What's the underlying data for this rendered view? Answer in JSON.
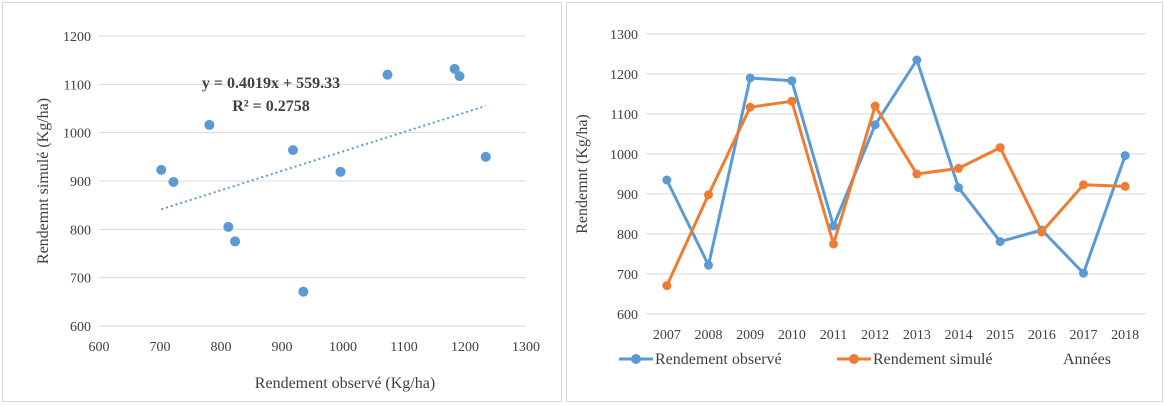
{
  "colors": {
    "blue": "#5b9bd5",
    "orange": "#ed7d31",
    "grid": "#d9d9d9",
    "text": "#404040"
  },
  "chart_data": [
    {
      "type": "scatter",
      "xlabel": "Rendement observé (Kg/ha)",
      "ylabel": "Rendemnt simulé (Kg/ha)",
      "xlim": [
        600,
        1300
      ],
      "ylim": [
        600,
        1200
      ],
      "xticks": [
        "600",
        "700",
        "800",
        "900",
        "1000",
        "1100",
        "1200",
        "1300"
      ],
      "yticks": [
        "600",
        "700",
        "800",
        "900",
        "1000",
        "1100",
        "1200"
      ],
      "grid": "horizontal",
      "points": [
        {
          "x": 702,
          "y": 923
        },
        {
          "x": 722,
          "y": 898
        },
        {
          "x": 781,
          "y": 1016
        },
        {
          "x": 812,
          "y": 805
        },
        {
          "x": 823,
          "y": 775
        },
        {
          "x": 918,
          "y": 964
        },
        {
          "x": 935,
          "y": 671
        },
        {
          "x": 996,
          "y": 919
        },
        {
          "x": 1073,
          "y": 1120
        },
        {
          "x": 1183,
          "y": 1132
        },
        {
          "x": 1191,
          "y": 1117
        },
        {
          "x": 1234,
          "y": 950
        }
      ],
      "trendline": {
        "slope": 0.4019,
        "intercept": 559.33,
        "x_range": [
          702,
          1234
        ]
      },
      "equation": "y = 0.4019x + 559.33",
      "r_squared": "R² = 0.2758"
    },
    {
      "type": "line",
      "ylabel": "Rendemnt (Kg/ha)",
      "xlabel": "Années",
      "ylim": [
        600,
        1300
      ],
      "yticks": [
        "600",
        "700",
        "800",
        "900",
        "1000",
        "1100",
        "1200",
        "1300"
      ],
      "grid": "horizontal",
      "legend": "bottom",
      "categories": [
        "2007",
        "2008",
        "2009",
        "2010",
        "2011",
        "2012",
        "2013",
        "2014",
        "2015",
        "2016",
        "2017",
        "2018"
      ],
      "series": [
        {
          "name": "Rendement observé",
          "color": "#5b9bd5",
          "values": [
            935,
            722,
            1190,
            1183,
            820,
            1073,
            1235,
            916,
            781,
            810,
            702,
            996
          ]
        },
        {
          "name": "Rendement simulé",
          "color": "#ed7d31",
          "values": [
            671,
            898,
            1117,
            1132,
            775,
            1120,
            950,
            964,
            1016,
            805,
            923,
            919
          ]
        }
      ]
    }
  ]
}
